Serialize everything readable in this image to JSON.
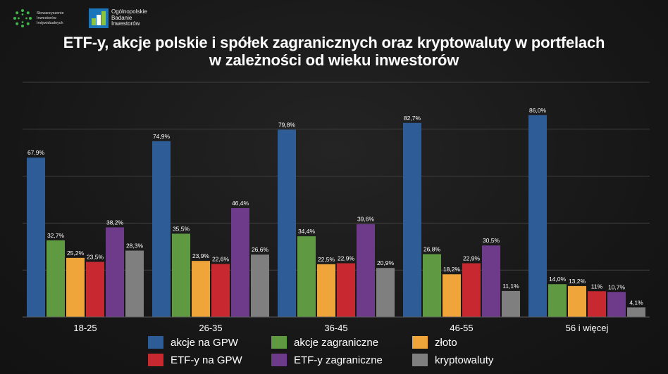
{
  "logos": {
    "org1": "Stowarzyszenie Inwestorów Indywidualnych",
    "org2": "Ogólnopolskie Badanie Inwestorów"
  },
  "chart_data": {
    "type": "bar",
    "title_lines": [
      "ETF-y, akcje polskie i spółek zagranicznych oraz kryptowaluty w portfelach",
      "w zależności od wieku inwestorów"
    ],
    "categories": [
      "18-25",
      "26-35",
      "36-45",
      "46-55",
      "56 i więcej"
    ],
    "ylim": [
      0,
      100
    ],
    "grid": true,
    "legend_position": "bottom",
    "series": [
      {
        "name": "akcje na GPW",
        "color": "#2e5c96",
        "values": [
          67.9,
          74.9,
          79.8,
          82.7,
          86.0
        ],
        "labels": [
          "67,9%",
          "74,9%",
          "79,8%",
          "82,7%",
          "86,0%"
        ]
      },
      {
        "name": "akcje zagraniczne",
        "color": "#5f9a43",
        "values": [
          32.7,
          35.5,
          34.4,
          26.8,
          14.0
        ],
        "labels": [
          "32,7%",
          "35,5%",
          "34,4%",
          "26,8%",
          "14,0%"
        ]
      },
      {
        "name": "złoto",
        "color": "#f0a53b",
        "values": [
          25.2,
          23.9,
          22.5,
          18.2,
          13.2
        ],
        "labels": [
          "25,2%",
          "23,9%",
          "22,5%",
          "18,2%",
          "13,2%"
        ]
      },
      {
        "name": "ETF-y na GPW",
        "color": "#c8282f",
        "values": [
          23.5,
          22.6,
          22.9,
          22.9,
          11.0
        ],
        "labels": [
          "23,5%",
          "22,6%",
          "22,9%",
          "22,9%",
          "11%"
        ]
      },
      {
        "name": "ETF-y zagraniczne",
        "color": "#6e3a8a",
        "values": [
          38.2,
          46.4,
          39.6,
          30.5,
          10.7
        ],
        "labels": [
          "38,2%",
          "46,4%",
          "39,6%",
          "30,5%",
          "10,7%"
        ]
      },
      {
        "name": "kryptowaluty",
        "color": "#7f7f7f",
        "values": [
          28.3,
          26.6,
          20.9,
          11.1,
          4.1
        ],
        "labels": [
          "28,3%",
          "26,6%",
          "20,9%",
          "11,1%",
          "4,1%"
        ]
      }
    ]
  }
}
